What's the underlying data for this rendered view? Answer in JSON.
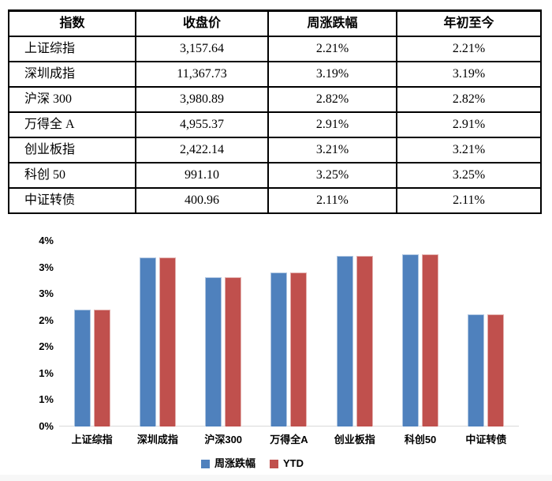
{
  "table": {
    "headers": [
      "指数",
      "收盘价",
      "周涨跌幅",
      "年初至今"
    ],
    "rows": [
      [
        "上证综指",
        "3,157.64",
        "2.21%",
        "2.21%"
      ],
      [
        "深圳成指",
        "11,367.73",
        "3.19%",
        "3.19%"
      ],
      [
        "沪深 300",
        "3,980.89",
        "2.82%",
        "2.82%"
      ],
      [
        "万得全 A",
        "4,955.37",
        "2.91%",
        "2.91%"
      ],
      [
        "创业板指",
        "2,422.14",
        "3.21%",
        "3.21%"
      ],
      [
        "科创 50",
        "991.10",
        "3.25%",
        "3.25%"
      ],
      [
        "中证转债",
        "400.96",
        "2.11%",
        "2.11%"
      ]
    ]
  },
  "chart_data": {
    "type": "bar",
    "categories": [
      "上证综指",
      "深圳成指",
      "沪深300",
      "万得全A",
      "创业板指",
      "科创50",
      "中证转债"
    ],
    "series": [
      {
        "name": "周涨跌幅",
        "color": "#4F81BD",
        "values": [
          2.21,
          3.19,
          2.82,
          2.91,
          3.21,
          3.25,
          2.11
        ]
      },
      {
        "name": "YTD",
        "color": "#C0504D",
        "values": [
          2.21,
          3.19,
          2.82,
          2.91,
          3.21,
          3.25,
          2.11
        ]
      }
    ],
    "title": "",
    "xlabel": "",
    "ylabel": "",
    "ylim": [
      0,
      3.5
    ],
    "ytick_step_pct": 0.5,
    "ytick_labels_bottom_to_top": [
      "0%",
      "1%",
      "1%",
      "2%",
      "2%",
      "3%",
      "3%",
      "4%"
    ],
    "grid": false,
    "legend_position": "bottom",
    "axis_line_color": "#d9d9d9"
  }
}
